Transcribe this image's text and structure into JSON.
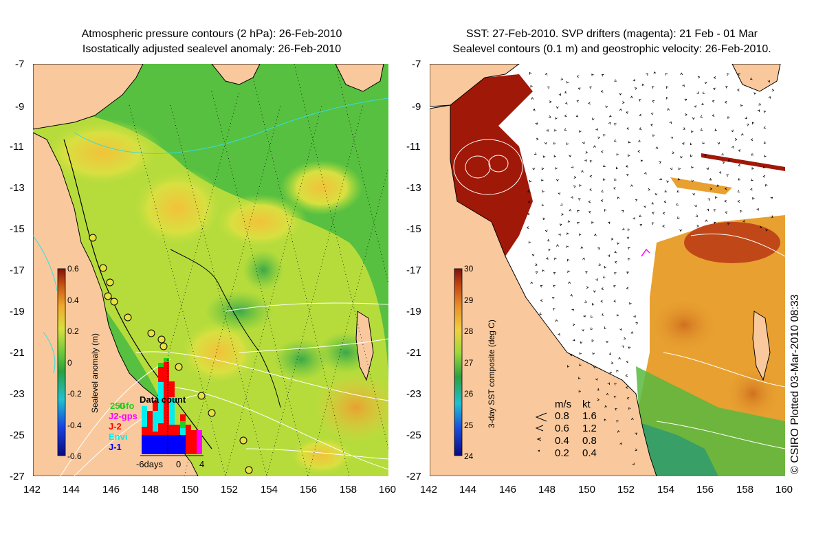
{
  "titles": {
    "left_line1": "Atmospheric pressure contours (2 hPa): 26-Feb-2010",
    "left_line2": "Isostatically adjusted sealevel anomaly: 26-Feb-2010",
    "right_line1": "SST: 27-Feb-2010. SVP drifters (magenta): 21 Feb - 01 Mar",
    "right_line2": "Sealevel contours (0.1 m) and geostrophic velocity: 26-Feb-2010."
  },
  "axes": {
    "lat_labels": [
      "-7",
      "-9",
      "-11",
      "-13",
      "-15",
      "-17",
      "-19",
      "-21",
      "-23",
      "-25",
      "-27"
    ],
    "lon_labels": [
      "142",
      "144",
      "146",
      "148",
      "150",
      "152",
      "154",
      "156",
      "158",
      "160"
    ]
  },
  "left_colorbar": {
    "label": "Sealevel anomaly (m)",
    "ticks": [
      "0.6",
      "0.4",
      "0.2",
      "0",
      "-0.2",
      "-0.4",
      "-0.6"
    ]
  },
  "right_colorbar": {
    "label": "3-day SST composite (deg C)",
    "ticks": [
      "30",
      "29",
      "28",
      "27",
      "26",
      "25",
      "24"
    ]
  },
  "data_count": {
    "title": "Data count",
    "max_label": "250",
    "sources": [
      {
        "name": "Gfo",
        "color": "#22cc22"
      },
      {
        "name": "J2-gps",
        "color": "#ff00ff"
      },
      {
        "name": "J-2",
        "color": "#ff0000"
      },
      {
        "name": "Envi",
        "color": "#00eeee"
      },
      {
        "name": "J-1",
        "color": "#0000ff"
      }
    ],
    "x_labels": [
      "-6days",
      "0",
      "4"
    ]
  },
  "velocity_legend": {
    "unit_ms": "m/s",
    "unit_kt": "kt",
    "rows": [
      {
        "ms": "0.8",
        "kt": "1.6"
      },
      {
        "ms": "0.6",
        "kt": "1.2"
      },
      {
        "ms": "0.4",
        "kt": "0.8"
      },
      {
        "ms": "0.2",
        "kt": "0.4"
      }
    ]
  },
  "credit": "© CSIRO Plotted 03-Mar-2010 08:33",
  "colors": {
    "land": "#f9c99d",
    "sst_warm": "#a01808",
    "sla_background": "#7fd23a"
  }
}
